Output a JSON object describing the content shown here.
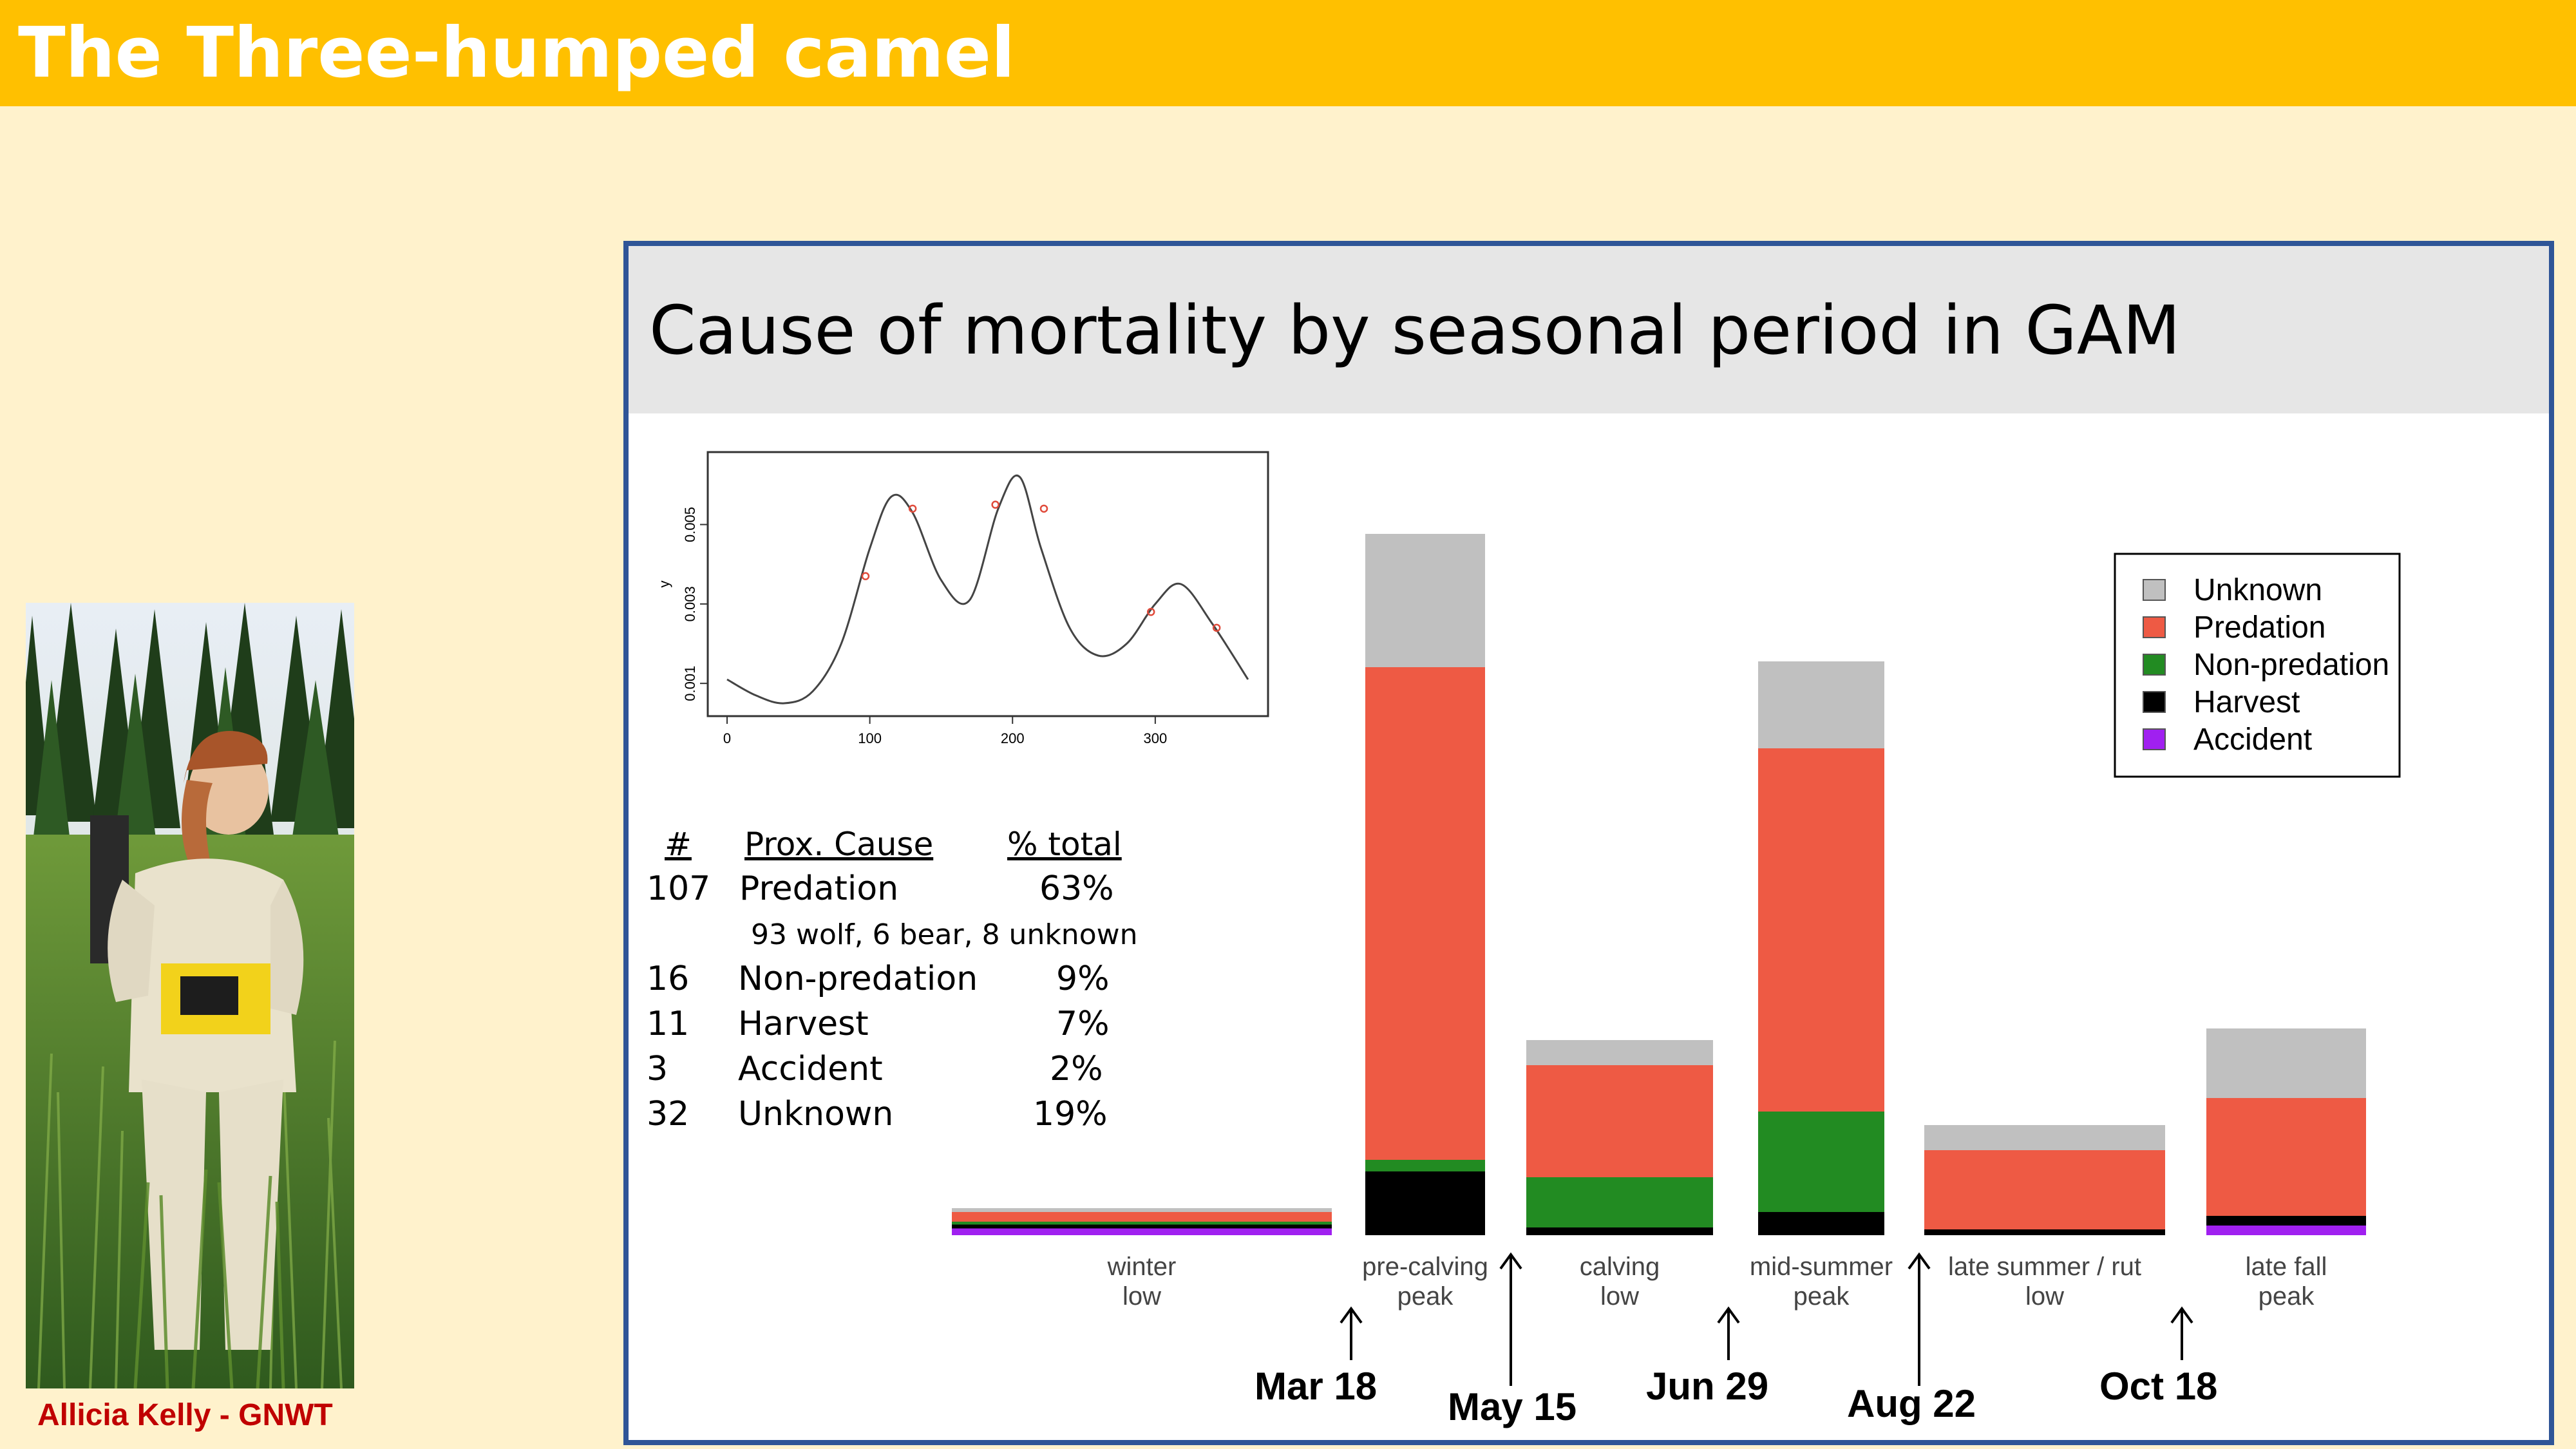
{
  "slide": {
    "title": "The Three-humped camel"
  },
  "photo": {
    "credit": "Allicia Kelly - GNWT"
  },
  "panel": {
    "title": "Cause of mortality by seasonal period in GAM"
  },
  "table": {
    "headers": {
      "num": "#",
      "cause": "Prox. Cause",
      "pct": "% total"
    },
    "rows": [
      {
        "num": "107",
        "cause": "Predation",
        "pct": "63%"
      },
      {
        "num": "16",
        "cause": "Non-predation",
        "pct": "9%"
      },
      {
        "num": "11",
        "cause": "Harvest",
        "pct": "7%"
      },
      {
        "num": "3",
        "cause": "Accident",
        "pct": "2%"
      },
      {
        "num": "32",
        "cause": "Unknown",
        "pct": "19%"
      }
    ],
    "predation_note": "93 wolf, 6 bear, 8 unknown"
  },
  "dates": [
    "Mar 18",
    "May 15",
    "Jun 29",
    "Aug 22",
    "Oct 18"
  ],
  "chart_data": [
    {
      "type": "line",
      "xlabel": "",
      "ylabel": "y",
      "xlim": [
        0,
        370
      ],
      "ylim": [
        0.0005,
        0.0065
      ],
      "xticks": [
        "0",
        "100",
        "200",
        "300"
      ],
      "yticks": [
        "0.001",
        "0.003",
        "0.005"
      ],
      "x": [
        0,
        20,
        40,
        60,
        80,
        100,
        115,
        130,
        150,
        170,
        190,
        205,
        220,
        240,
        260,
        280,
        300,
        318,
        340,
        365
      ],
      "y": [
        0.0011,
        0.0007,
        0.0005,
        0.0008,
        0.002,
        0.0044,
        0.0057,
        0.0053,
        0.0036,
        0.0031,
        0.0054,
        0.0062,
        0.0044,
        0.0024,
        0.0017,
        0.002,
        0.003,
        0.0035,
        0.0025,
        0.0011
      ],
      "marked_points": {
        "x": [
          97,
          130,
          188,
          222,
          297,
          343
        ],
        "y": [
          0.0037,
          0.0054,
          0.0055,
          0.0054,
          0.0028,
          0.0024
        ]
      }
    },
    {
      "type": "bar",
      "stacked": true,
      "categories": [
        "winter\nlow",
        "pre-calving\npeak",
        "calving\nlow",
        "mid-summer\npeak",
        "late summer / rut\nlow",
        "late fall\npeak"
      ],
      "series": [
        {
          "name": "Accident",
          "color": "#a020f0",
          "values": [
            0.35,
            0,
            0,
            0,
            0,
            0.5
          ]
        },
        {
          "name": "Harvest",
          "color": "#000000",
          "values": [
            0.2,
            3.3,
            0.4,
            1.2,
            0.3,
            0.5
          ]
        },
        {
          "name": "Non-predation",
          "color": "#228b22",
          "values": [
            0.15,
            0.6,
            2.6,
            5.2,
            0,
            0
          ]
        },
        {
          "name": "Predation",
          "color": "#ee5a44",
          "values": [
            0.5,
            25.5,
            5.8,
            18.8,
            4.1,
            6.1
          ]
        },
        {
          "name": "Unknown",
          "color": "#c0c0c0",
          "values": [
            0.2,
            6.9,
            1.3,
            4.5,
            1.3,
            3.6
          ]
        }
      ],
      "legend_position": "top-right"
    }
  ]
}
